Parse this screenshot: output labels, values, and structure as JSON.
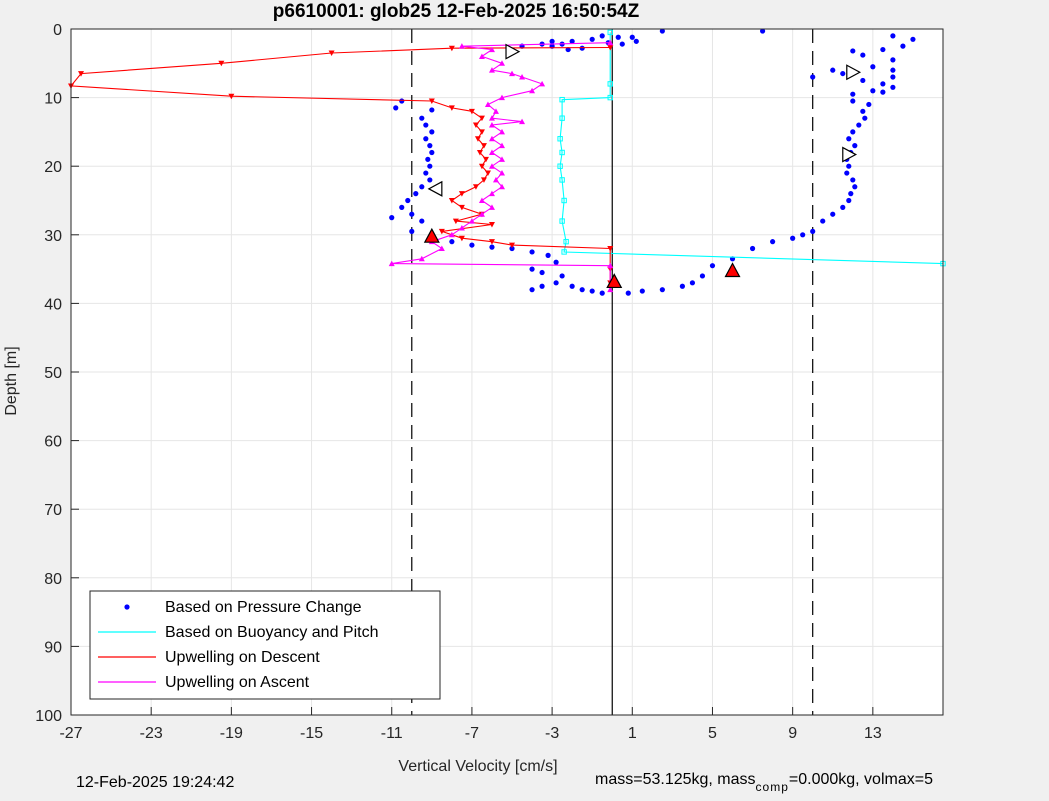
{
  "timestamp": "12-Feb-2025 19:24:42",
  "annotation": {
    "prefix": "mass=53.125kg, mass",
    "subscript": "comp",
    "suffix": "=0.000kg, volmax=5"
  },
  "chart_data": {
    "type": "scatter",
    "title": "p6610001: glob25 12-Feb-2025 16:50:54Z",
    "xlabel": "Vertical Velocity [cm/s]",
    "ylabel": "Depth [m]",
    "xlim": [
      -27,
      16.5
    ],
    "ylim": [
      0,
      100
    ],
    "y_reversed": true,
    "grid": true,
    "xticks": [
      -27,
      -23,
      -19,
      -15,
      -11,
      -7,
      -3,
      1,
      5,
      9,
      13
    ],
    "yticks": [
      0,
      10,
      20,
      30,
      40,
      50,
      60,
      70,
      80,
      90,
      100
    ],
    "legend_position": "bottom-left",
    "reference_lines": {
      "solid_x": 0,
      "dashed_x": [
        -10,
        10
      ]
    },
    "series": [
      {
        "name": "Based on Pressure Change",
        "kind": "points",
        "color": "#0000ff",
        "points": [
          [
            2.5,
            0.3
          ],
          [
            7.5,
            0.3
          ],
          [
            14,
            1.0
          ],
          [
            15,
            1.5
          ],
          [
            -0.5,
            1.0
          ],
          [
            0.3,
            1.2
          ],
          [
            1.0,
            1.2
          ],
          [
            1.2,
            1.8
          ],
          [
            -1.0,
            1.5
          ],
          [
            -0.2,
            2.0
          ],
          [
            0.5,
            2.2
          ],
          [
            -2.0,
            1.8
          ],
          [
            -3.0,
            1.8
          ],
          [
            -2.5,
            2.2
          ],
          [
            -3.5,
            2.2
          ],
          [
            -4.5,
            2.5
          ],
          [
            -3.0,
            2.5
          ],
          [
            -1.5,
            2.8
          ],
          [
            -2.2,
            3.0
          ],
          [
            14.5,
            2.5
          ],
          [
            13.5,
            3.0
          ],
          [
            12,
            3.2
          ],
          [
            12.5,
            3.8
          ],
          [
            14,
            4.5
          ],
          [
            13,
            5.5
          ],
          [
            14,
            6
          ],
          [
            14,
            7
          ],
          [
            12.5,
            7.5
          ],
          [
            13.5,
            8
          ],
          [
            14,
            8.5
          ],
          [
            13,
            9.0
          ],
          [
            12,
            9.5
          ],
          [
            10,
            7.0
          ],
          [
            11,
            6.0
          ],
          [
            11.5,
            6.5
          ],
          [
            13.5,
            9.2
          ],
          [
            12,
            10.5
          ],
          [
            12.8,
            11
          ],
          [
            12.5,
            12
          ],
          [
            12.6,
            13
          ],
          [
            12.3,
            14
          ],
          [
            12,
            15
          ],
          [
            11.8,
            16
          ],
          [
            12.1,
            17
          ],
          [
            11.9,
            18
          ],
          [
            11.7,
            19
          ],
          [
            11.8,
            20
          ],
          [
            11.7,
            21
          ],
          [
            12.0,
            22
          ],
          [
            12.1,
            23
          ],
          [
            11.9,
            24
          ],
          [
            11.8,
            25
          ],
          [
            11.5,
            26
          ],
          [
            11,
            27
          ],
          [
            10.5,
            28
          ],
          [
            10,
            29.5
          ],
          [
            9.5,
            30
          ],
          [
            9,
            30.5
          ],
          [
            8,
            31
          ],
          [
            7,
            32
          ],
          [
            6,
            33.5
          ],
          [
            5,
            34.5
          ],
          [
            4.5,
            36
          ],
          [
            4,
            37
          ],
          [
            3.5,
            37.5
          ],
          [
            2.5,
            38
          ],
          [
            1.5,
            38.2
          ],
          [
            0.8,
            38.5
          ],
          [
            -10.5,
            10.5
          ],
          [
            -10.8,
            11.5
          ],
          [
            -9,
            11.8
          ],
          [
            -9.5,
            13
          ],
          [
            -9.3,
            14
          ],
          [
            -9.0,
            15
          ],
          [
            -9.3,
            16
          ],
          [
            -9.1,
            17
          ],
          [
            -9.0,
            18
          ],
          [
            -9.2,
            19
          ],
          [
            -9.1,
            20
          ],
          [
            -9.3,
            21
          ],
          [
            -9.1,
            22
          ],
          [
            -9.5,
            23
          ],
          [
            -9.8,
            24
          ],
          [
            -10.2,
            25
          ],
          [
            -10.5,
            26
          ],
          [
            -10,
            27
          ],
          [
            -11,
            27.5
          ],
          [
            -9.5,
            28
          ],
          [
            -10,
            29.5
          ],
          [
            -8,
            31
          ],
          [
            -7,
            31.5
          ],
          [
            -6,
            31.8
          ],
          [
            -5,
            32
          ],
          [
            -4,
            32.5
          ],
          [
            -3.2,
            33
          ],
          [
            -2.8,
            34
          ],
          [
            -4.0,
            35
          ],
          [
            -3.5,
            35.5
          ],
          [
            -2.5,
            36
          ],
          [
            -2.8,
            37
          ],
          [
            -3.5,
            37.5
          ],
          [
            -4,
            38
          ],
          [
            -2,
            37.5
          ],
          [
            -1.5,
            38
          ],
          [
            -1,
            38.2
          ],
          [
            -0.5,
            38.5
          ]
        ]
      },
      {
        "name": "Based on Buoyancy and Pitch",
        "kind": "line",
        "color": "#00ffff",
        "points": [
          [
            -0.1,
            0.5
          ],
          [
            -0.1,
            8
          ],
          [
            -0.1,
            10
          ],
          [
            -2.5,
            10.3
          ],
          [
            -2.5,
            13
          ],
          [
            -2.6,
            16
          ],
          [
            -2.5,
            18
          ],
          [
            -2.6,
            20
          ],
          [
            -2.5,
            22
          ],
          [
            -2.4,
            25
          ],
          [
            -2.5,
            28
          ],
          [
            -2.3,
            31
          ],
          [
            -2.4,
            32.5
          ],
          [
            16.5,
            34.2
          ]
        ]
      },
      {
        "name": "Upwelling on Descent",
        "kind": "line",
        "color": "#ff0000",
        "points": [
          [
            -0.1,
            2.7
          ],
          [
            -8,
            2.8
          ],
          [
            -14,
            3.5
          ],
          [
            -19.5,
            5
          ],
          [
            -26.5,
            6.5
          ],
          [
            -27,
            8.3
          ],
          [
            -19,
            9.8
          ],
          [
            -9,
            10.5
          ],
          [
            -8,
            11.5
          ],
          [
            -7,
            12
          ],
          [
            -6.5,
            13
          ],
          [
            -6.8,
            14
          ],
          [
            -6.5,
            15
          ],
          [
            -6.7,
            16
          ],
          [
            -6.4,
            17
          ],
          [
            -6.6,
            18
          ],
          [
            -6.3,
            19
          ],
          [
            -6.5,
            20
          ],
          [
            -6.2,
            21
          ],
          [
            -6.4,
            22
          ],
          [
            -6.8,
            23
          ],
          [
            -7.5,
            24
          ],
          [
            -8,
            25
          ],
          [
            -7.5,
            26
          ],
          [
            -6.5,
            27
          ],
          [
            -7.8,
            28
          ],
          [
            -6,
            28.5
          ],
          [
            -8.5,
            29.5
          ],
          [
            -7.5,
            30.5
          ],
          [
            -6,
            31
          ],
          [
            -5,
            31.5
          ],
          [
            -0.1,
            32
          ],
          [
            -0.1,
            35
          ],
          [
            -0.1,
            37
          ]
        ]
      },
      {
        "name": "Upwelling on Ascent",
        "kind": "line",
        "color": "#ff00ff",
        "points": [
          [
            -0.1,
            38
          ],
          [
            -0.1,
            34.5
          ],
          [
            -11,
            34.2
          ],
          [
            -9.5,
            33.5
          ],
          [
            -8.5,
            32
          ],
          [
            -9,
            31
          ],
          [
            -8,
            30
          ],
          [
            -7.5,
            29
          ],
          [
            -7,
            28
          ],
          [
            -6.5,
            27
          ],
          [
            -6,
            26
          ],
          [
            -6.5,
            25
          ],
          [
            -6,
            24
          ],
          [
            -5.5,
            23
          ],
          [
            -5.8,
            22
          ],
          [
            -5.5,
            21
          ],
          [
            -6,
            20
          ],
          [
            -5.5,
            19
          ],
          [
            -6,
            18
          ],
          [
            -5.5,
            17
          ],
          [
            -6,
            16
          ],
          [
            -5.5,
            15
          ],
          [
            -6,
            14
          ],
          [
            -4.5,
            13.5
          ],
          [
            -6,
            13
          ],
          [
            -5.8,
            12
          ],
          [
            -6.2,
            11
          ],
          [
            -5.5,
            10
          ],
          [
            -4,
            9
          ],
          [
            -3.5,
            8
          ],
          [
            -4.5,
            7
          ],
          [
            -5,
            6.5
          ],
          [
            -6,
            6
          ],
          [
            -5.5,
            5
          ],
          [
            -6.5,
            4
          ],
          [
            -6,
            3
          ],
          [
            -7.5,
            2.5
          ],
          [
            -0.1,
            2
          ]
        ]
      }
    ],
    "markers": [
      {
        "kind": "open-right",
        "x": -5,
        "y": 3.3
      },
      {
        "kind": "open-right",
        "x": 12,
        "y": 6.3
      },
      {
        "kind": "open-right",
        "x": 11.8,
        "y": 18.3
      },
      {
        "kind": "open-left",
        "x": -8.8,
        "y": 23.3
      },
      {
        "kind": "filled-red",
        "x": -9,
        "y": 30.2
      },
      {
        "kind": "filled-red",
        "x": 6,
        "y": 35.2
      },
      {
        "kind": "filled-red",
        "x": 0.1,
        "y": 36.8
      }
    ]
  }
}
